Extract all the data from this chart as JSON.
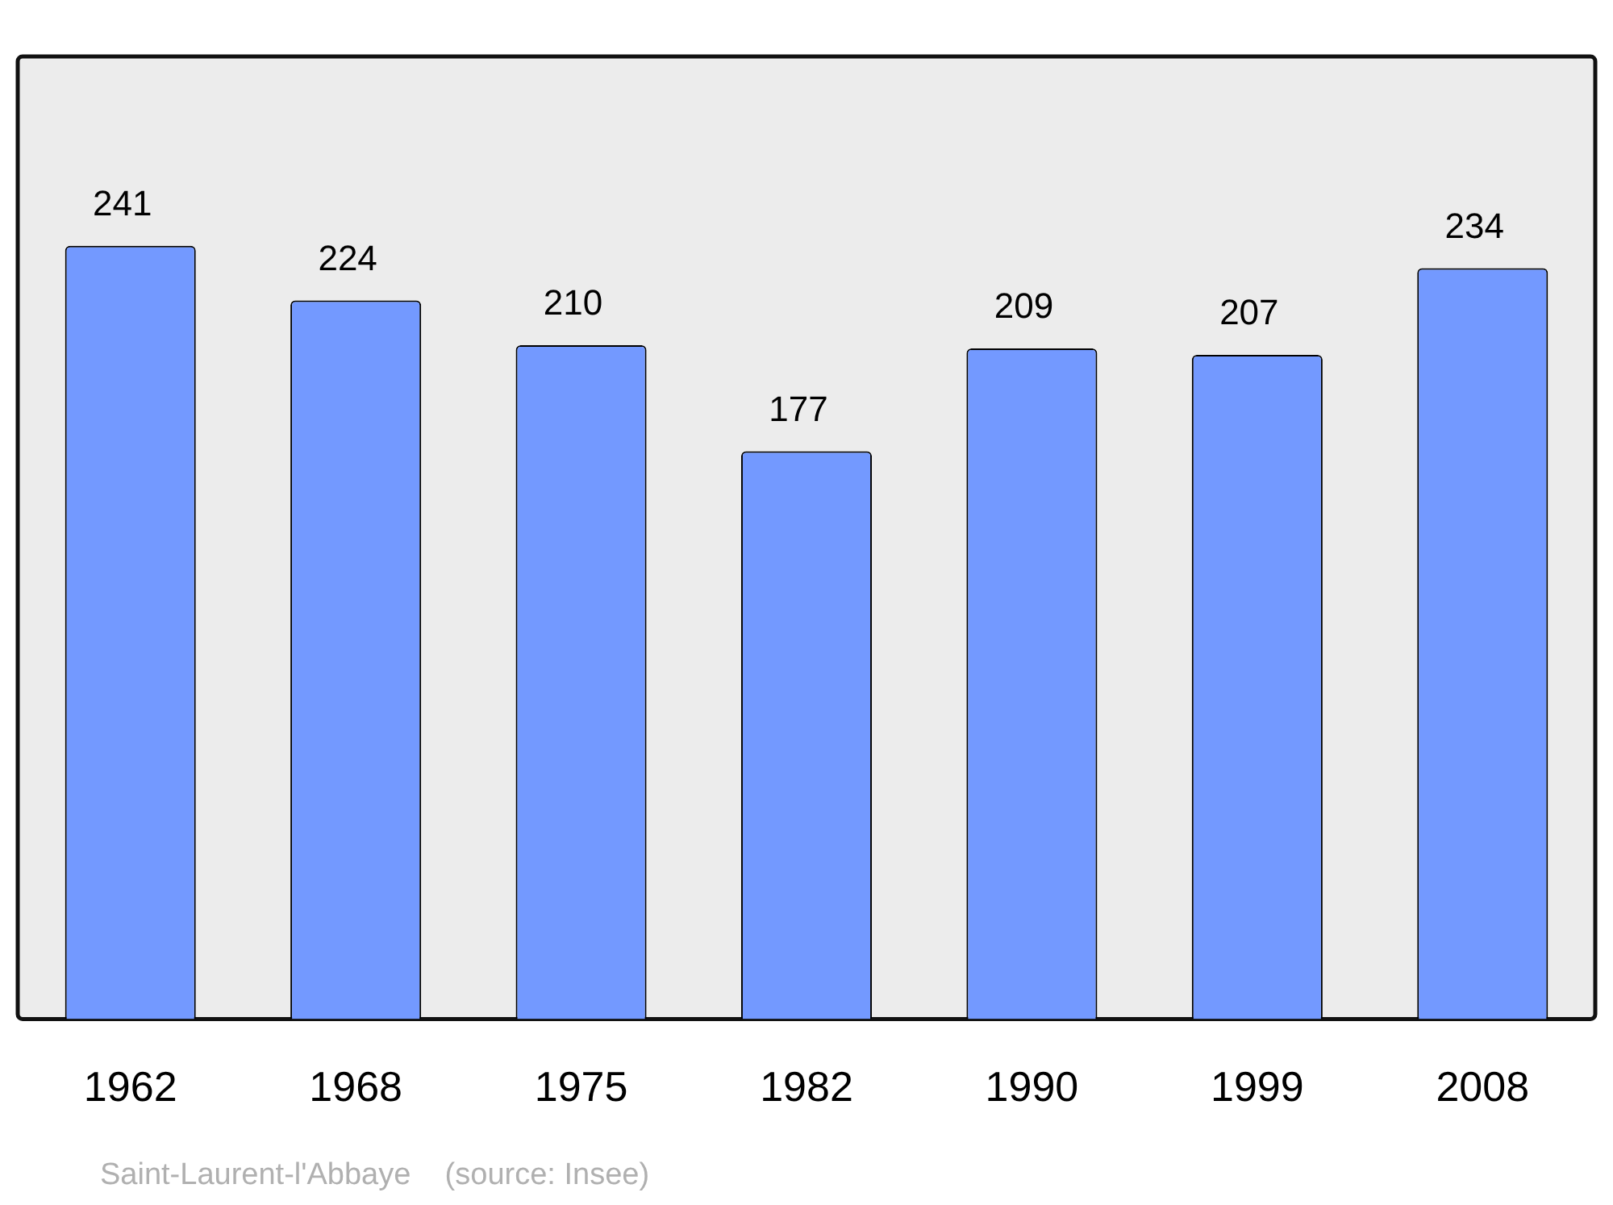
{
  "chart_data": {
    "type": "bar",
    "categories": [
      "1962",
      "1968",
      "1975",
      "1982",
      "1990",
      "1999",
      "2008"
    ],
    "values": [
      241,
      224,
      210,
      177,
      209,
      207,
      234
    ],
    "color": "#7399ff",
    "data_labels": true,
    "grid": false,
    "legend": false,
    "annotations": [
      "Saint-Laurent-l'Abbaye    (source: Insee)"
    ]
  }
}
